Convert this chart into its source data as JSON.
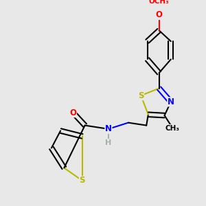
{
  "background_color": "#e8e8e8",
  "atom_colors": {
    "S": "#b8b800",
    "N": "#0000ff",
    "O": "#ff0000",
    "H": "#a0b0b0",
    "C": "#000000"
  },
  "bond_lw": 1.5,
  "fig_size": [
    3.0,
    3.0
  ],
  "dpi": 100
}
